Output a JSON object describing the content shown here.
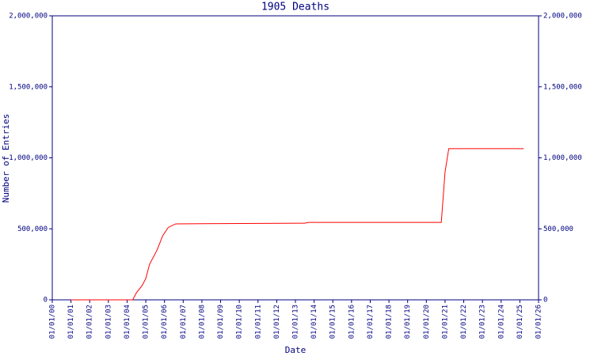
{
  "chart_data": {
    "type": "line",
    "title": "1905 Deaths",
    "xlabel": "Date",
    "ylabel": "Number of Entries",
    "x": [
      1,
      4.3,
      4.5,
      4.8,
      5.0,
      5.2,
      5.6,
      5.9,
      6.2,
      6.6,
      13.5,
      13.7,
      20.8,
      21.0,
      21.2,
      25.2
    ],
    "series": [
      {
        "name": "1905 Deaths",
        "color": "#ff0000",
        "values": [
          0,
          0,
          50000,
          100000,
          150000,
          250000,
          350000,
          450000,
          510000,
          535000,
          540000,
          545000,
          545000,
          900000,
          1065000,
          1065000
        ]
      }
    ],
    "xlim": [
      0,
      26
    ],
    "xticks": [
      {
        "value": 0,
        "label": "01/01/00"
      },
      {
        "value": 1,
        "label": "01/01/01"
      },
      {
        "value": 2,
        "label": "01/01/02"
      },
      {
        "value": 3,
        "label": "01/01/03"
      },
      {
        "value": 4,
        "label": "01/01/04"
      },
      {
        "value": 5,
        "label": "01/01/05"
      },
      {
        "value": 6,
        "label": "01/01/06"
      },
      {
        "value": 7,
        "label": "01/01/07"
      },
      {
        "value": 8,
        "label": "01/01/08"
      },
      {
        "value": 9,
        "label": "01/01/09"
      },
      {
        "value": 10,
        "label": "01/01/10"
      },
      {
        "value": 11,
        "label": "01/01/11"
      },
      {
        "value": 12,
        "label": "01/01/12"
      },
      {
        "value": 13,
        "label": "01/01/13"
      },
      {
        "value": 14,
        "label": "01/01/14"
      },
      {
        "value": 15,
        "label": "01/01/15"
      },
      {
        "value": 16,
        "label": "01/01/16"
      },
      {
        "value": 17,
        "label": "01/01/17"
      },
      {
        "value": 18,
        "label": "01/01/18"
      },
      {
        "value": 19,
        "label": "01/01/19"
      },
      {
        "value": 20,
        "label": "01/01/20"
      },
      {
        "value": 21,
        "label": "01/01/21"
      },
      {
        "value": 22,
        "label": "01/01/22"
      },
      {
        "value": 23,
        "label": "01/01/23"
      },
      {
        "value": 24,
        "label": "01/01/24"
      },
      {
        "value": 25,
        "label": "01/01/25"
      },
      {
        "value": 26,
        "label": "01/01/26"
      }
    ],
    "ylim": [
      0,
      2000000
    ],
    "yticks": [
      0,
      {
        "value": 500000,
        "label": "500,000"
      },
      {
        "value": 1000000,
        "label": "1,000,000"
      },
      {
        "value": 1500000,
        "label": "1,500,000"
      },
      {
        "value": 2000000,
        "label": "2,000,000"
      }
    ],
    "y2lim": [
      0,
      2000000
    ],
    "y2ticks": [
      0,
      {
        "value": 500000,
        "label": "500,000"
      },
      {
        "value": 1000000,
        "label": "1,000,000"
      },
      {
        "value": 1500000,
        "label": "1,500,000"
      },
      {
        "value": 2000000,
        "label": "2,000,000"
      }
    ],
    "axis_color": "#000080"
  }
}
